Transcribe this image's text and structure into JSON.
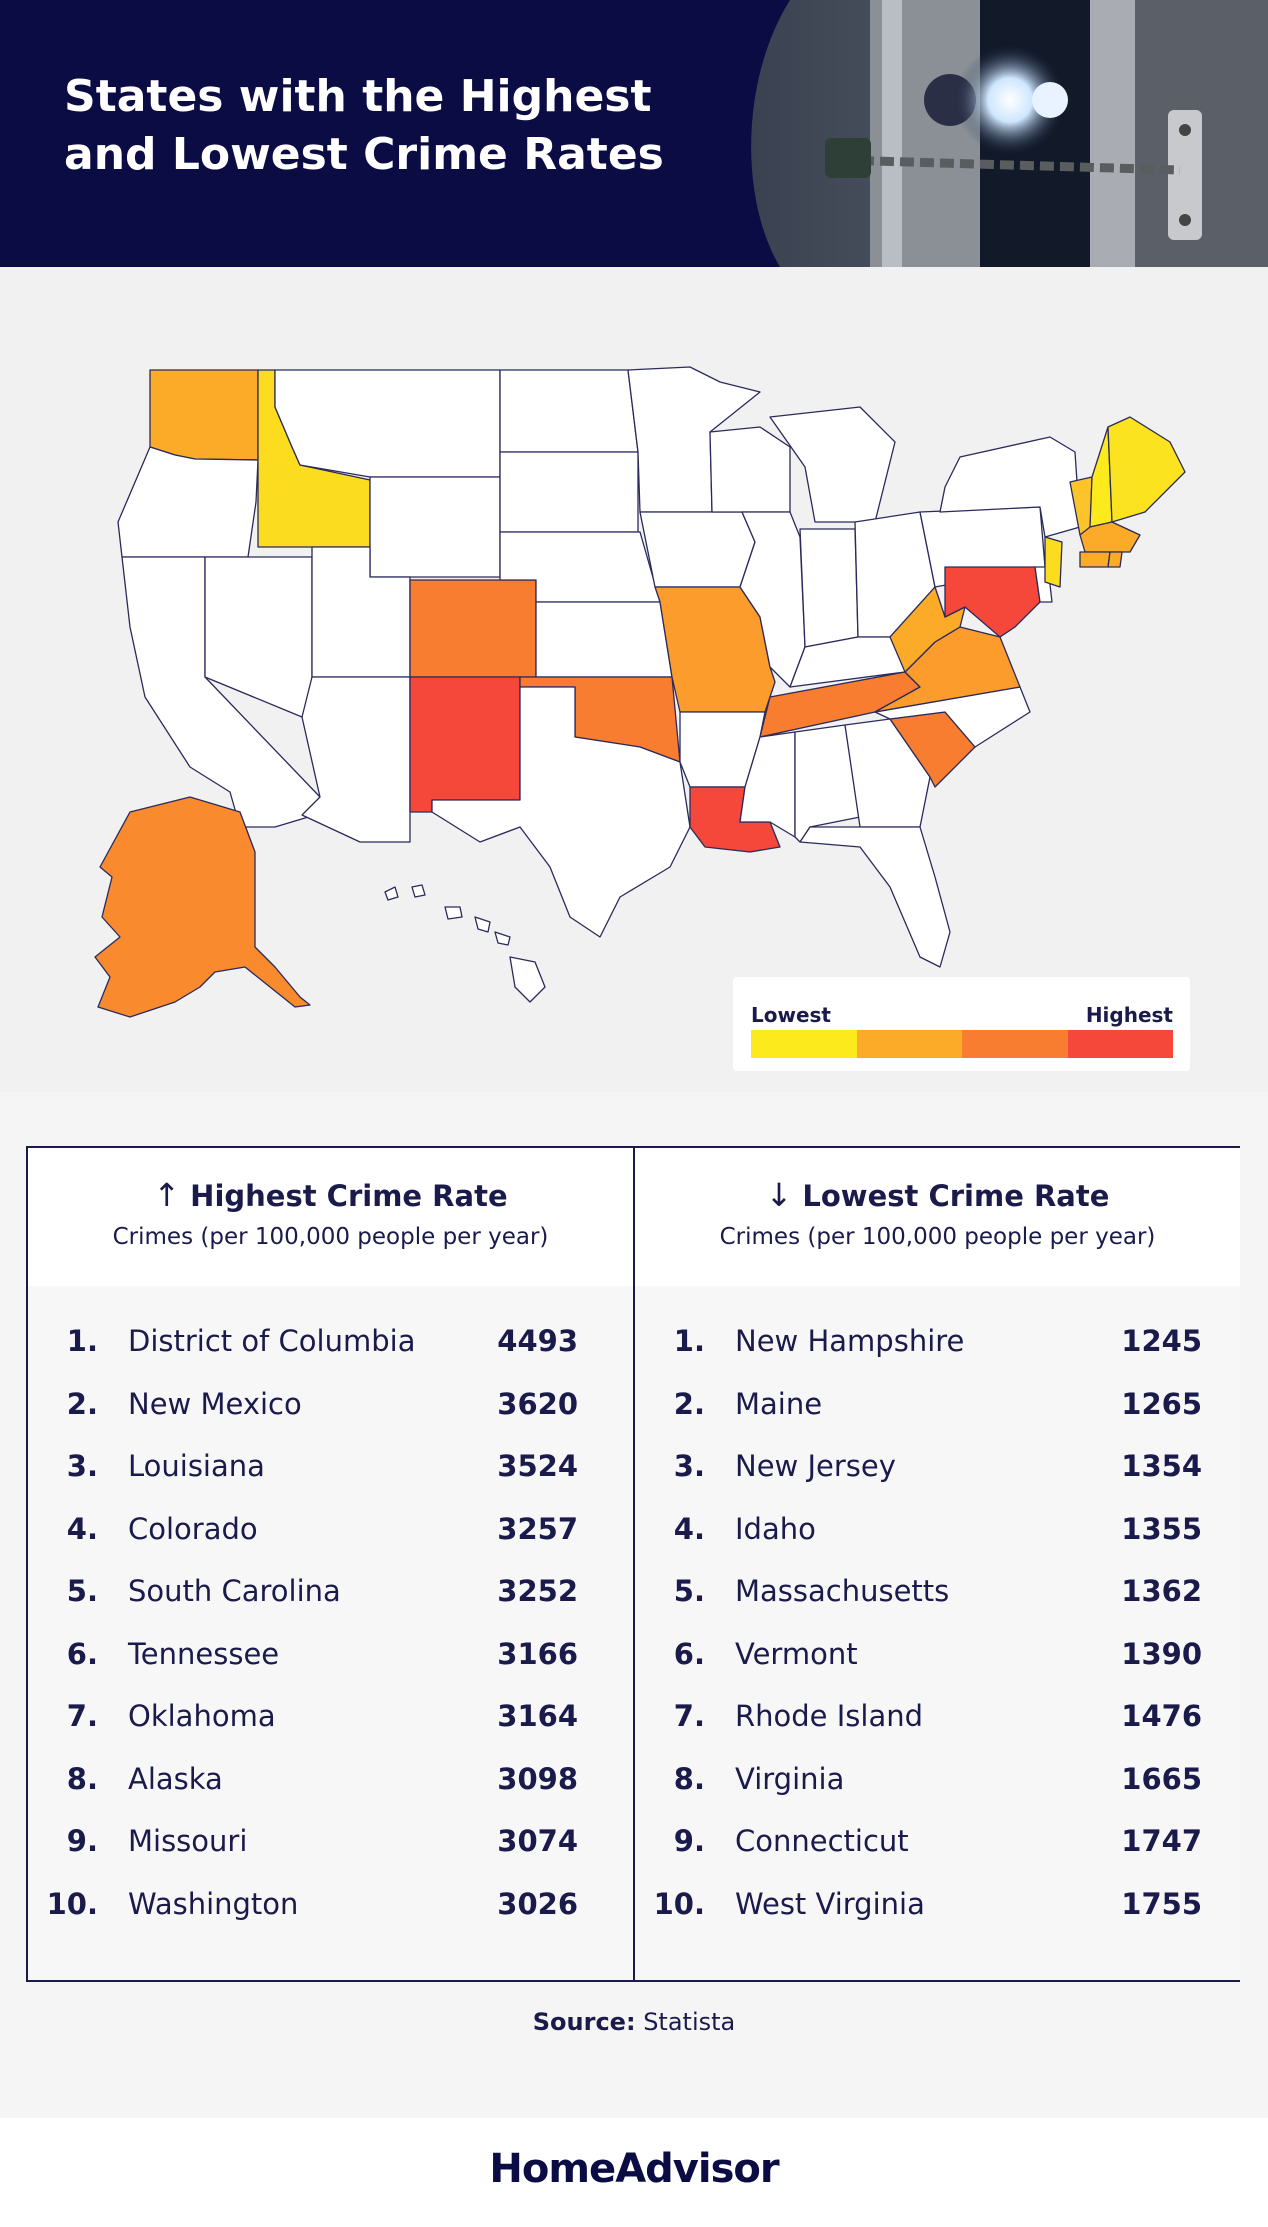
{
  "header": {
    "title_line1": "States with the Highest",
    "title_line2": "and Lowest Crime Rates"
  },
  "colors": {
    "navy": "#0c0c45",
    "scale": [
      "#fcea1c",
      "#fbab28",
      "#f97d30",
      "#f5483b"
    ],
    "state_default": "#ffffff",
    "state_border": "#2a2a5c"
  },
  "map": {
    "state_scale_level": {
      "District of Columbia": 3,
      "New Mexico": 3,
      "Louisiana": 3,
      "Maryland": 3,
      "Colorado": 2,
      "South Carolina": 2,
      "Tennessee": 2,
      "Oklahoma": 2,
      "Alaska": 2,
      "Missouri": 1,
      "Washington": 1,
      "West Virginia": 1,
      "Virginia": 1,
      "Connecticut": 1,
      "Rhode Island": 1,
      "New Hampshire": 0,
      "Maine": 0,
      "New Jersey": 0,
      "Idaho": 0,
      "Massachusetts": 1,
      "Vermont": 0
    },
    "legend": {
      "low_label": "Lowest",
      "high_label": "Highest"
    }
  },
  "highest": {
    "title": "Highest Crime Rate",
    "subtitle": "Crimes (per 100,000 people per year)",
    "arrow": "↑",
    "rows": [
      {
        "rank": "1.",
        "state": "District of Columbia",
        "value": "4493"
      },
      {
        "rank": "2.",
        "state": "New Mexico",
        "value": "3620"
      },
      {
        "rank": "3.",
        "state": "Louisiana",
        "value": "3524"
      },
      {
        "rank": "4.",
        "state": "Colorado",
        "value": "3257"
      },
      {
        "rank": "5.",
        "state": "South Carolina",
        "value": "3252"
      },
      {
        "rank": "6.",
        "state": "Tennessee",
        "value": "3166"
      },
      {
        "rank": "7.",
        "state": "Oklahoma",
        "value": "3164"
      },
      {
        "rank": "8.",
        "state": "Alaska",
        "value": "3098"
      },
      {
        "rank": "9.",
        "state": "Missouri",
        "value": "3074"
      },
      {
        "rank": "10.",
        "state": "Washington",
        "value": "3026"
      }
    ]
  },
  "lowest": {
    "title": "Lowest Crime Rate",
    "subtitle": "Crimes (per 100,000 people per year)",
    "arrow": "↓",
    "rows": [
      {
        "rank": "1.",
        "state": "New Hampshire",
        "value": "1245"
      },
      {
        "rank": "2.",
        "state": "Maine",
        "value": "1265"
      },
      {
        "rank": "3.",
        "state": "New Jersey",
        "value": "1354"
      },
      {
        "rank": "4.",
        "state": "Idaho",
        "value": "1355"
      },
      {
        "rank": "5.",
        "state": "Massachusetts",
        "value": "1362"
      },
      {
        "rank": "6.",
        "state": "Vermont",
        "value": "1390"
      },
      {
        "rank": "7.",
        "state": "Rhode Island",
        "value": "1476"
      },
      {
        "rank": "8.",
        "state": "Virginia",
        "value": "1665"
      },
      {
        "rank": "9.",
        "state": "Connecticut",
        "value": "1747"
      },
      {
        "rank": "10.",
        "state": "West Virginia",
        "value": "1755"
      }
    ]
  },
  "source": {
    "label": "Source:",
    "value": "Statista"
  },
  "footer": {
    "logo": "HomeAdvisor"
  }
}
